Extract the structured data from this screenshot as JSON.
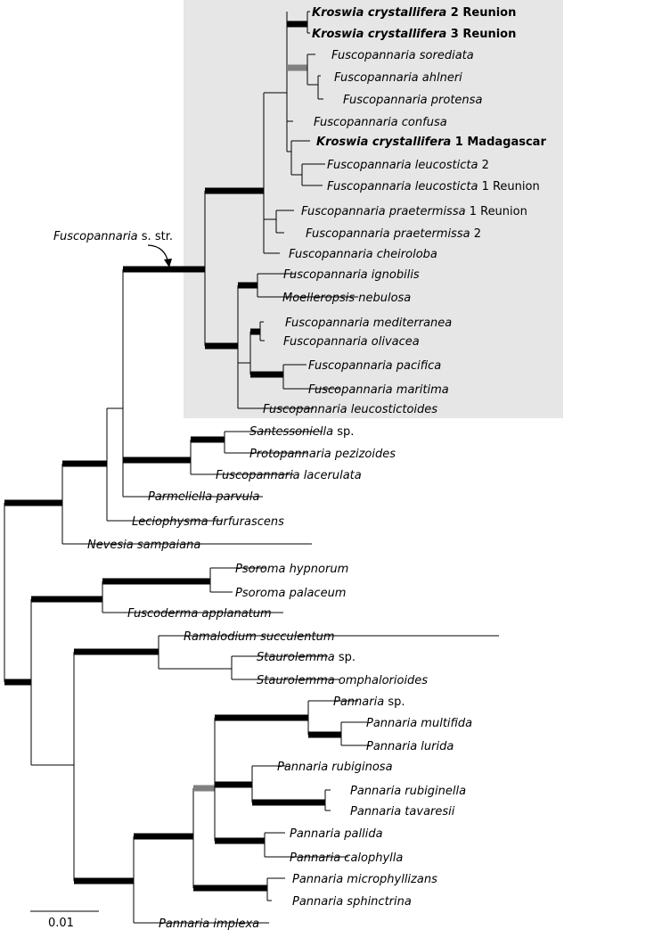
{
  "colors": {
    "highlight": "#e6e6e6",
    "strong_support": "#000000",
    "moderate_support": "#808080"
  },
  "annotation": {
    "italic": "Fuscopannaria",
    "plain": " s. str."
  },
  "scale": {
    "label": "0.01"
  },
  "taxa": [
    {
      "id": "t1",
      "italic": "Kroswia crystallifera",
      "plain": " 2 Reunion",
      "bold": true
    },
    {
      "id": "t2",
      "italic": "Kroswia crystallifera",
      "plain": " 3 Reunion",
      "bold": true
    },
    {
      "id": "t3",
      "italic": "Fuscopannaria sorediata",
      "plain": ""
    },
    {
      "id": "t4",
      "italic": "Fuscopannaria ahlneri",
      "plain": ""
    },
    {
      "id": "t5",
      "italic": "Fuscopannaria protensa",
      "plain": ""
    },
    {
      "id": "t6",
      "italic": "Fuscopannaria confusa",
      "plain": ""
    },
    {
      "id": "t7",
      "italic": "Kroswia crystallifera",
      "plain": " 1 Madagascar",
      "bold": true
    },
    {
      "id": "t8",
      "italic": "Fuscopannaria leucosticta",
      "plain": " 2"
    },
    {
      "id": "t9",
      "italic": "Fuscopannaria leucosticta",
      "plain": " 1 Reunion"
    },
    {
      "id": "t10",
      "italic": "Fuscopannaria praetermissa",
      "plain": " 1 Reunion"
    },
    {
      "id": "t11",
      "italic": "Fuscopannaria praetermissa",
      "plain": " 2"
    },
    {
      "id": "t12",
      "italic": "Fuscopannaria cheiroloba",
      "plain": ""
    },
    {
      "id": "t13",
      "italic": "Fuscopannaria ignobilis",
      "plain": ""
    },
    {
      "id": "t14",
      "italic": "Moelleropsis nebulosa",
      "plain": ""
    },
    {
      "id": "t15",
      "italic": "Fuscopannaria mediterranea",
      "plain": ""
    },
    {
      "id": "t16",
      "italic": "Fuscopannaria olivacea",
      "plain": ""
    },
    {
      "id": "t17",
      "italic": "Fuscopannaria pacifica",
      "plain": ""
    },
    {
      "id": "t18",
      "italic": "Fuscopannaria maritima",
      "plain": ""
    },
    {
      "id": "t19",
      "italic": "Fuscopannaria leucostictoides",
      "plain": ""
    },
    {
      "id": "t20",
      "italic": "Santessoniella",
      "plain": " sp."
    },
    {
      "id": "t21",
      "italic": "Protopannaria pezizoides",
      "plain": ""
    },
    {
      "id": "t22",
      "italic": "Fuscopannaria lacerulata",
      "plain": ""
    },
    {
      "id": "t23",
      "italic": "Parmeliella parvula",
      "plain": ""
    },
    {
      "id": "t24",
      "italic": "Leciophysma furfurascens",
      "plain": ""
    },
    {
      "id": "t25",
      "italic": "Nevesia sampaiana",
      "plain": ""
    },
    {
      "id": "t26",
      "italic": "Psoroma hypnorum",
      "plain": ""
    },
    {
      "id": "t27",
      "italic": "Psoroma palaceum",
      "plain": ""
    },
    {
      "id": "t28",
      "italic": "Fuscoderma applanatum",
      "plain": ""
    },
    {
      "id": "t29",
      "italic": "Ramalodium succulentum",
      "plain": ""
    },
    {
      "id": "t30",
      "italic": "Staurolemma",
      "plain": " sp."
    },
    {
      "id": "t31",
      "italic": "Staurolemma omphalorioides",
      "plain": ""
    },
    {
      "id": "t32",
      "italic": "Pannaria",
      "plain": " sp."
    },
    {
      "id": "t33",
      "italic": "Pannaria multifida",
      "plain": ""
    },
    {
      "id": "t34",
      "italic": "Pannaria lurida",
      "plain": ""
    },
    {
      "id": "t35",
      "italic": "Pannaria rubiginosa",
      "plain": ""
    },
    {
      "id": "t36",
      "italic": "Pannaria rubiginella",
      "plain": ""
    },
    {
      "id": "t37",
      "italic": "Pannaria tavaresii",
      "plain": ""
    },
    {
      "id": "t38",
      "italic": "Pannaria pallida",
      "plain": ""
    },
    {
      "id": "t39",
      "italic": "Pannaria calophylla",
      "plain": ""
    },
    {
      "id": "t40",
      "italic": "Pannaria microphyllizans",
      "plain": ""
    },
    {
      "id": "t41",
      "italic": "Pannaria sphinctrina",
      "plain": ""
    },
    {
      "id": "t42",
      "italic": "Pannaria implexa",
      "plain": ""
    }
  ]
}
